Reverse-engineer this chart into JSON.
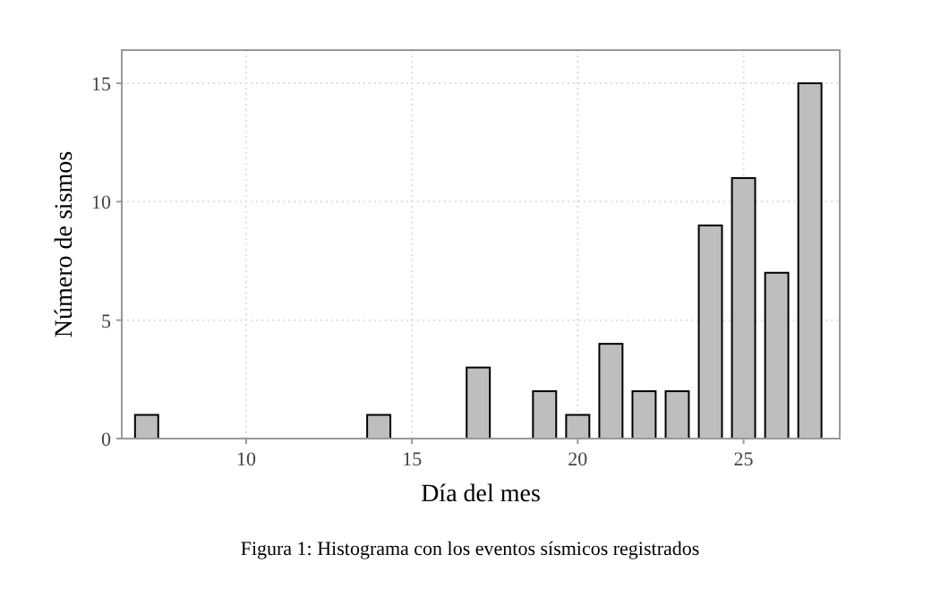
{
  "chart_data": {
    "type": "bar",
    "xlabel": "Día del mes",
    "ylabel": "Número de sismos",
    "x": [
      7,
      8,
      9,
      10,
      11,
      12,
      13,
      14,
      15,
      16,
      17,
      18,
      19,
      20,
      21,
      22,
      23,
      24,
      25,
      26,
      27
    ],
    "values": [
      1,
      0,
      0,
      0,
      0,
      0,
      0,
      1,
      0,
      0,
      3,
      0,
      2,
      1,
      4,
      2,
      2,
      9,
      11,
      7,
      15
    ],
    "color": "#bebebe",
    "xlim": [
      6.25,
      27.9
    ],
    "xticks": [
      10,
      15,
      20,
      25
    ],
    "ylim": [
      0,
      16.4
    ],
    "yticks": [
      0,
      5,
      10,
      15
    ],
    "grid": true,
    "annotations": [
      "Figura 1: Histograma con los eventos sísmicos registrados"
    ]
  }
}
